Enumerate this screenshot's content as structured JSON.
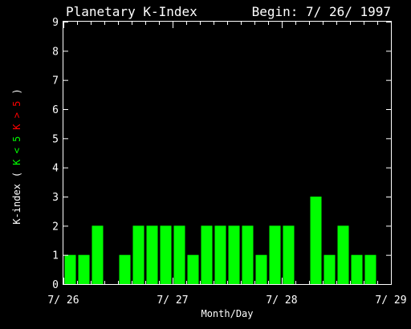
{
  "chart_data": {
    "type": "bar",
    "title": "Planetary K-Index",
    "begin_label": "Begin: 7/ 26/ 1997",
    "xlabel": "Month/Day",
    "ylabel_parts": [
      {
        "text": "K-index",
        "color": "#ffffff"
      },
      {
        "text": "(",
        "color": "#ffffff"
      },
      {
        "text": "K < 5",
        "color": "#00ff00"
      },
      {
        "text": "K > 5",
        "color": "#ff0000"
      },
      {
        "text": ")",
        "color": "#ffffff"
      }
    ],
    "x_ticks": [
      "7/ 26",
      "7/ 27",
      "7/ 28",
      "7/ 29"
    ],
    "y_ticks": [
      "0",
      "1",
      "2",
      "3",
      "4",
      "5",
      "6",
      "7",
      "8",
      "9"
    ],
    "ylim": [
      0,
      9
    ],
    "intervals": 24,
    "values": [
      1,
      1,
      2,
      0,
      1,
      2,
      2,
      2,
      2,
      1,
      2,
      2,
      2,
      2,
      1,
      2,
      2,
      0,
      3,
      1,
      2,
      1,
      1,
      0
    ],
    "bar_color": "#00ff00",
    "high_color": "#ff0000",
    "axis_color": "#ffffff",
    "background": "#000000"
  }
}
